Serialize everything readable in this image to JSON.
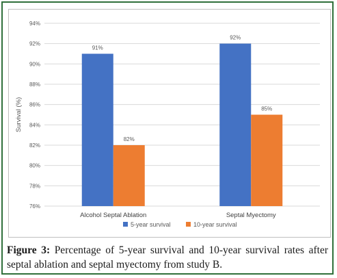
{
  "chart_data": {
    "type": "bar",
    "categories": [
      "Alcohol Septal Ablation",
      "Septal Myectomy"
    ],
    "series": [
      {
        "name": "5-year survival",
        "values": [
          91,
          92
        ],
        "labels": [
          "91%",
          "92%"
        ],
        "color": "#4472c4"
      },
      {
        "name": "10-year survival",
        "values": [
          82,
          85
        ],
        "labels": [
          "82%",
          "85%"
        ],
        "color": "#ed7d31"
      }
    ],
    "title": "",
    "xlabel": "",
    "ylabel": "Survival (%)",
    "ylim": [
      76,
      94
    ],
    "yticks": [
      76,
      78,
      80,
      82,
      84,
      86,
      88,
      90,
      92,
      94
    ],
    "ytick_labels": [
      "76%",
      "78%",
      "80%",
      "82%",
      "84%",
      "86%",
      "88%",
      "90%",
      "92%",
      "94%"
    ],
    "grid": true,
    "legend_position": "bottom"
  },
  "caption": {
    "label": "Figure 3:",
    "text": "Percentage of 5-year survival and 10-year survival rates after septal ablation and septal myectomy from study B."
  },
  "colors": {
    "frame_border": "#2f6f3a",
    "gridline": "#d9d9d9",
    "text": "#595959"
  }
}
